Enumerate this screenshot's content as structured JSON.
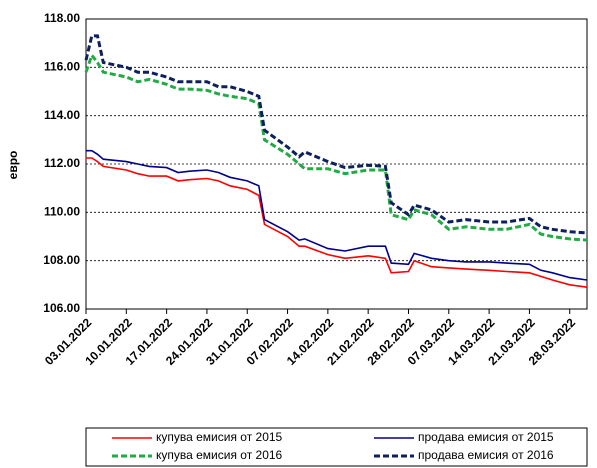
{
  "chart_data": {
    "type": "line",
    "y_label": "евро",
    "x": [
      "03.01.2022",
      "04.01.2022",
      "05.01.2022",
      "06.01.2022",
      "10.01.2022",
      "12.01.2022",
      "14.01.2022",
      "17.01.2022",
      "19.01.2022",
      "21.01.2022",
      "24.01.2022",
      "26.01.2022",
      "28.01.2022",
      "31.01.2022",
      "02.02.2022",
      "03.02.2022",
      "07.02.2022",
      "09.02.2022",
      "10.02.2022",
      "14.02.2022",
      "17.02.2022",
      "21.02.2022",
      "24.02.2022",
      "25.02.2022",
      "28.02.2022",
      "01.03.2022",
      "04.03.2022",
      "07.03.2022",
      "10.03.2022",
      "14.03.2022",
      "17.03.2022",
      "21.03.2022",
      "23.03.2022",
      "25.03.2022",
      "28.03.2022",
      "31.03.2022"
    ],
    "xlim": [
      "03.01.2022",
      "31.03.2022"
    ],
    "xticks": [
      "03.01.2022",
      "10.01.2022",
      "17.01.2022",
      "24.01.2022",
      "31.01.2022",
      "07.02.2022",
      "14.02.2022",
      "21.02.2022",
      "28.02.2022",
      "07.03.2022",
      "14.03.2022",
      "21.03.2022",
      "28.03.2022"
    ],
    "ylim": [
      106,
      118
    ],
    "yticks": [
      {
        "value": 106,
        "label": "106.00"
      },
      {
        "value": 108,
        "label": "108.00"
      },
      {
        "value": 110,
        "label": "110.00"
      },
      {
        "value": 112,
        "label": "112.00"
      },
      {
        "value": 114,
        "label": "114.00"
      },
      {
        "value": 116,
        "label": "116.00"
      },
      {
        "value": 118,
        "label": "118.00"
      }
    ],
    "grid": true,
    "series": [
      {
        "name": "купува емисия от 2015",
        "color": "#ff0000",
        "dashed": false,
        "values": [
          112.25,
          112.25,
          112.1,
          111.9,
          111.75,
          111.6,
          111.5,
          111.5,
          111.3,
          111.35,
          111.4,
          111.3,
          111.1,
          110.95,
          110.7,
          109.5,
          109.0,
          108.6,
          108.6,
          108.25,
          108.1,
          108.2,
          108.1,
          107.5,
          107.55,
          108.0,
          107.75,
          107.7,
          107.65,
          107.6,
          107.55,
          107.5,
          107.35,
          107.2,
          107.0,
          106.9
        ]
      },
      {
        "name": "продава емисия от 2015",
        "color": "#00008b",
        "dashed": false,
        "values": [
          112.55,
          112.55,
          112.4,
          112.2,
          112.1,
          112.0,
          111.9,
          111.85,
          111.65,
          111.7,
          111.75,
          111.65,
          111.45,
          111.3,
          111.1,
          109.7,
          109.2,
          108.85,
          108.9,
          108.5,
          108.4,
          108.6,
          108.6,
          107.9,
          107.85,
          108.3,
          108.1,
          108.0,
          107.95,
          107.95,
          107.9,
          107.85,
          107.6,
          107.5,
          107.3,
          107.2
        ]
      },
      {
        "name": "купува емисия от 2016",
        "color": "#22aa44",
        "dashed": true,
        "values": [
          115.8,
          116.5,
          116.2,
          115.8,
          115.6,
          115.4,
          115.5,
          115.3,
          115.1,
          115.1,
          115.05,
          114.9,
          114.8,
          114.7,
          114.5,
          113.0,
          112.4,
          112.0,
          111.8,
          111.8,
          111.6,
          111.75,
          111.75,
          109.9,
          109.7,
          110.1,
          109.9,
          109.3,
          109.4,
          109.3,
          109.3,
          109.5,
          109.1,
          109.0,
          108.9,
          108.85
        ]
      },
      {
        "name": "продава емисия от 2016",
        "color": "#0d1f5c",
        "dashed": true,
        "values": [
          116.3,
          117.3,
          117.3,
          116.2,
          116.0,
          115.8,
          115.8,
          115.6,
          115.4,
          115.4,
          115.4,
          115.2,
          115.2,
          115.0,
          114.8,
          113.4,
          112.7,
          112.3,
          112.5,
          112.1,
          111.85,
          111.95,
          111.9,
          110.4,
          109.9,
          110.3,
          110.1,
          109.6,
          109.7,
          109.6,
          109.6,
          109.75,
          109.4,
          109.3,
          109.2,
          109.15
        ]
      }
    ]
  }
}
